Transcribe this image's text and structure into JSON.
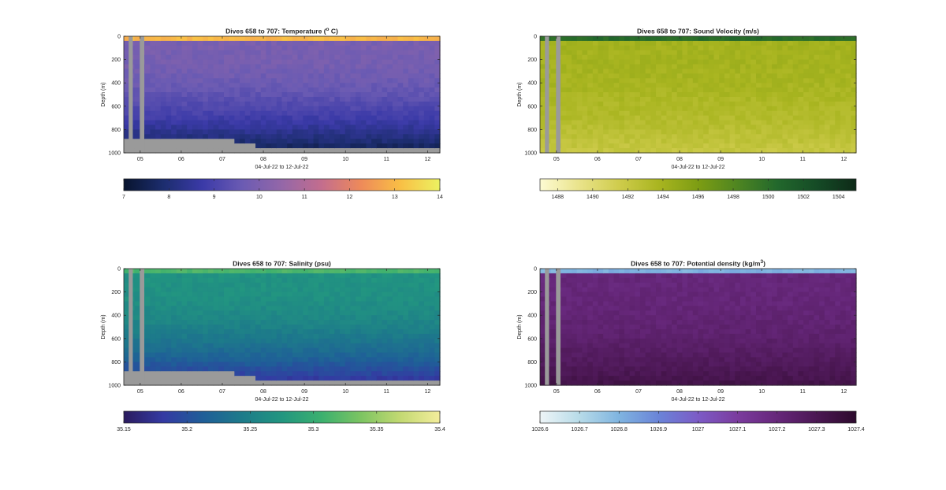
{
  "chart_data": [
    {
      "type": "heatmap",
      "title": "Dives 658 to 707: Temperature (",
      "title_superscript": "o",
      "title_suffix": " C)",
      "xlabel": "04-Jul-22 to 12-Jul-22",
      "ylabel": "Depth (m)",
      "x_ticks": [
        "05",
        "06",
        "07",
        "08",
        "09",
        "10",
        "11",
        "12"
      ],
      "x_tick_values": [
        5,
        6,
        7,
        8,
        9,
        10,
        11,
        12
      ],
      "xlim": [
        4.6,
        12.3
      ],
      "y_ticks": [
        "0",
        "200",
        "400",
        "600",
        "800",
        "1000"
      ],
      "y_tick_values": [
        0,
        200,
        400,
        600,
        800,
        1000
      ],
      "ylim": [
        0,
        1000
      ],
      "gap_color": "#9a9a9a",
      "no_data_columns_x": [
        [
          4.72,
          4.82
        ],
        [
          4.99,
          5.1
        ]
      ],
      "colorbar": {
        "ticks": [
          "7",
          "8",
          "9",
          "10",
          "11",
          "12",
          "13",
          "14"
        ],
        "tick_values": [
          7,
          8,
          9,
          10,
          11,
          12,
          13,
          14
        ],
        "range": [
          7,
          14
        ],
        "colors": [
          "#08142e",
          "#1c2d6e",
          "#3b3aa8",
          "#6b5bb3",
          "#9467a8",
          "#c36d8e",
          "#ee8a5a",
          "#f9bf45",
          "#ecf261"
        ]
      },
      "surface_value": 13.4,
      "mixed_depth_m": 60,
      "interior_value": 9.9,
      "deep_value": 7.4,
      "bottom_depth_profile": [
        [
          4.6,
          880
        ],
        [
          5.3,
          870
        ],
        [
          5.8,
          900
        ],
        [
          6.3,
          860
        ],
        [
          7.0,
          860
        ],
        [
          7.5,
          930
        ],
        [
          8.5,
          960
        ],
        [
          9.5,
          970
        ],
        [
          10.5,
          975
        ],
        [
          11.5,
          960
        ],
        [
          12.3,
          960
        ]
      ]
    },
    {
      "type": "heatmap",
      "title": "Dives 658 to 707: Sound Velocity (m/s)",
      "xlabel": "04-Jul-22 to 12-Jul-22",
      "ylabel": "Depth (m)",
      "x_ticks": [
        "05",
        "06",
        "07",
        "08",
        "09",
        "10",
        "11",
        "12"
      ],
      "x_tick_values": [
        5,
        6,
        7,
        8,
        9,
        10,
        11,
        12
      ],
      "xlim": [
        4.6,
        12.3
      ],
      "y_ticks": [
        "0",
        "200",
        "400",
        "600",
        "800",
        "1000"
      ],
      "y_tick_values": [
        0,
        200,
        400,
        600,
        800,
        1000
      ],
      "ylim": [
        0,
        1000
      ],
      "gap_color": "#9a9a9a",
      "no_data_columns_x": [
        [
          4.72,
          4.82
        ],
        [
          4.99,
          5.1
        ]
      ],
      "colorbar": {
        "ticks": [
          "1488",
          "1490",
          "1492",
          "1494",
          "1496",
          "1498",
          "1500",
          "1502",
          "1504"
        ],
        "tick_values": [
          1488,
          1490,
          1492,
          1494,
          1496,
          1498,
          1500,
          1502,
          1504
        ],
        "range": [
          1487,
          1505
        ],
        "colors": [
          "#fdfbd3",
          "#e9e38a",
          "#cfcc4c",
          "#a9b520",
          "#7d9d13",
          "#4e8521",
          "#22682c",
          "#154b26",
          "#0e2a18"
        ]
      },
      "surface_value": 1501,
      "mixed_depth_m": 60,
      "interior_value": 1494,
      "deep_value": 1492
    },
    {
      "type": "heatmap",
      "title": "Dives 658 to 707: Salinity (psu)",
      "xlabel": "04-Jul-22 to 12-Jul-22",
      "ylabel": "Depth (m)",
      "x_ticks": [
        "05",
        "06",
        "07",
        "08",
        "09",
        "10",
        "11",
        "12"
      ],
      "x_tick_values": [
        5,
        6,
        7,
        8,
        9,
        10,
        11,
        12
      ],
      "xlim": [
        4.6,
        12.3
      ],
      "y_ticks": [
        "0",
        "200",
        "400",
        "600",
        "800",
        "1000"
      ],
      "y_tick_values": [
        0,
        200,
        400,
        600,
        800,
        1000
      ],
      "ylim": [
        0,
        1000
      ],
      "gap_color": "#9a9a9a",
      "no_data_columns_x": [
        [
          4.72,
          4.82
        ],
        [
          4.99,
          5.1
        ]
      ],
      "colorbar": {
        "ticks": [
          "35.15",
          "35.2",
          "35.25",
          "35.3",
          "35.35",
          "35.4"
        ],
        "tick_values": [
          35.15,
          35.2,
          35.25,
          35.3,
          35.35,
          35.4
        ],
        "range": [
          35.15,
          35.4
        ],
        "colors": [
          "#2b1b5e",
          "#343aa3",
          "#1f5e98",
          "#1d7b8a",
          "#229680",
          "#3bb06f",
          "#7cc462",
          "#c3d972",
          "#f3ed9c"
        ]
      },
      "surface_value": 35.32,
      "mixed_depth_m": 60,
      "interior_value": 35.27,
      "deep_value": 35.17,
      "bottom_depth_profile": [
        [
          4.6,
          880
        ],
        [
          5.3,
          870
        ],
        [
          5.8,
          900
        ],
        [
          6.3,
          860
        ],
        [
          7.0,
          860
        ],
        [
          7.5,
          930
        ],
        [
          8.5,
          960
        ],
        [
          9.5,
          970
        ],
        [
          10.5,
          975
        ],
        [
          11.5,
          960
        ],
        [
          12.3,
          960
        ]
      ]
    },
    {
      "type": "heatmap",
      "title": "Dives 658 to 707: Potential density (kg/m",
      "title_superscript": "3",
      "title_suffix": ")",
      "xlabel": "04-Jul-22 to 12-Jul-22",
      "ylabel": "Depth (m)",
      "x_ticks": [
        "05",
        "06",
        "07",
        "08",
        "09",
        "10",
        "11",
        "12"
      ],
      "x_tick_values": [
        5,
        6,
        7,
        8,
        9,
        10,
        11,
        12
      ],
      "xlim": [
        4.6,
        12.3
      ],
      "y_ticks": [
        "0",
        "200",
        "400",
        "600",
        "800",
        "1000"
      ],
      "y_tick_values": [
        0,
        200,
        400,
        600,
        800,
        1000
      ],
      "ylim": [
        0,
        1000
      ],
      "gap_color": "#9a9a9a",
      "no_data_columns_x": [
        [
          4.72,
          4.82
        ],
        [
          4.99,
          5.1
        ]
      ],
      "colorbar": {
        "ticks": [
          "1026.6",
          "1026.7",
          "1026.8",
          "1026.9",
          "1027",
          "1027.1",
          "1027.2",
          "1027.3",
          "1027.4"
        ],
        "tick_values": [
          1026.6,
          1026.7,
          1026.8,
          1026.9,
          1027,
          1027.1,
          1027.2,
          1027.3,
          1027.4
        ],
        "range": [
          1026.6,
          1027.4
        ],
        "colors": [
          "#eef5f7",
          "#b7dbe8",
          "#7fb4e0",
          "#6a84d8",
          "#7c5bc6",
          "#7b3c9e",
          "#66277a",
          "#4b1753",
          "#2d0a2d"
        ]
      },
      "surface_value": 1026.75,
      "mixed_depth_m": 60,
      "interior_value": 1027.2,
      "deep_value": 1027.33
    }
  ]
}
